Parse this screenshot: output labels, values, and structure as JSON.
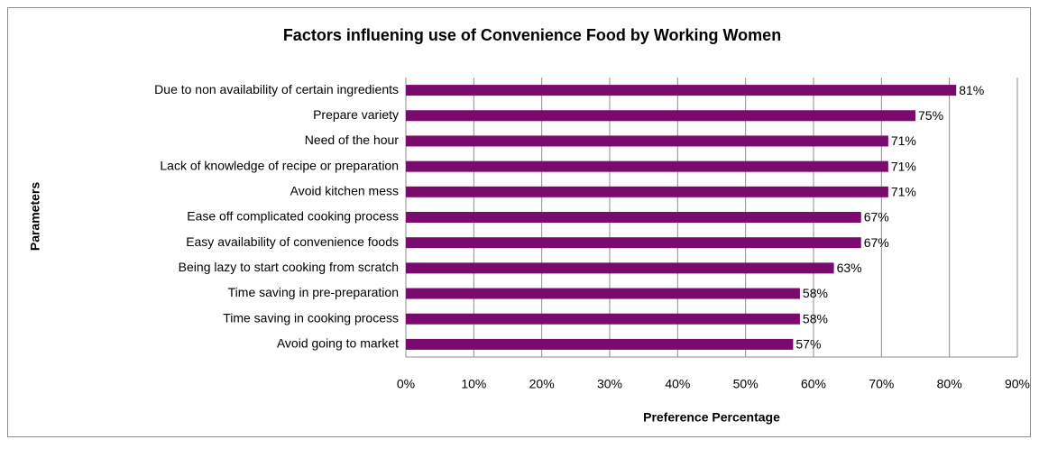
{
  "chart_data": {
    "type": "bar",
    "orientation": "horizontal",
    "title": "Factors influening use of Convenience Food by Working Women",
    "x_label": "Preference Percentage",
    "y_label": "Parameters",
    "categories": [
      "Due to non availability of certain ingredients",
      "Prepare variety",
      "Need of the hour",
      "Lack of knowledge of recipe or preparation",
      "Avoid kitchen mess",
      "Ease off complicated cooking process",
      "Easy availability of convenience foods",
      "Being lazy to start cooking from scratch",
      "Time saving in pre-preparation",
      "Time saving in cooking process",
      "Avoid going to market"
    ],
    "values": [
      81,
      75,
      71,
      71,
      71,
      67,
      67,
      63,
      58,
      58,
      57
    ],
    "value_labels": [
      "81%",
      "75%",
      "71%",
      "71%",
      "71%",
      "67%",
      "67%",
      "63%",
      "58%",
      "58%",
      "57%"
    ],
    "color": "#7b0a6e",
    "xlim": [
      0,
      90
    ],
    "xticks": [
      {
        "value": 0,
        "label": "0%"
      },
      {
        "value": 10,
        "label": "10%"
      },
      {
        "value": 20,
        "label": "20%"
      },
      {
        "value": 30,
        "label": "30%"
      },
      {
        "value": 40,
        "label": "40%"
      },
      {
        "value": 50,
        "label": "50%"
      },
      {
        "value": 60,
        "label": "60%"
      },
      {
        "value": 70,
        "label": "70%"
      },
      {
        "value": 80,
        "label": "80%"
      },
      {
        "value": 90,
        "label": "90%"
      }
    ],
    "grid": true
  }
}
